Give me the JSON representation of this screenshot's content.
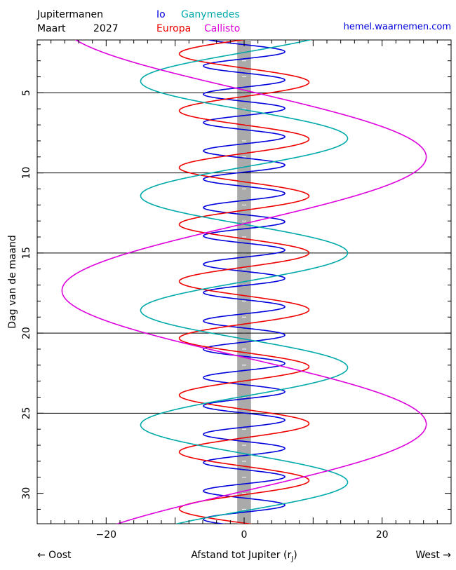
{
  "header": {
    "title": "Jupitermanen",
    "month": "Maart",
    "year": "2027",
    "site": "hemel.waarnemen.com"
  },
  "legend": [
    {
      "name": "Io",
      "color": "#0000dd"
    },
    {
      "name": "Ganymedes",
      "color": "#00aaaa"
    },
    {
      "name": "Europa",
      "color": "#ee0000"
    },
    {
      "name": "Callisto",
      "color": "#dd00dd"
    }
  ],
  "footer": {
    "east": "← Oost",
    "west": "West →",
    "xlabel": "Afstand tot Jupiter (r",
    "xlabel_sub": "J",
    "xlabel_close": ")"
  },
  "chart_data": {
    "type": "line",
    "title": "Jupitermanen",
    "xlabel": "Afstand tot Jupiter (rJ)",
    "ylabel": "Dag van de maand",
    "xlim": [
      -30,
      30
    ],
    "ylim": [
      1.7,
      31.9
    ],
    "y_inverted": true,
    "xticks": [
      -20,
      0,
      20
    ],
    "yticks": [
      5,
      10,
      15,
      20,
      25,
      30
    ],
    "grid": "horizontal lines at days 5, 10, 15, 20, 25",
    "jupiter_band_halfwidth": 1,
    "series": [
      {
        "name": "Io",
        "color": "#0000dd",
        "amplitude": 5.9,
        "period_days": 1.769,
        "peak_day": 27.2
      },
      {
        "name": "Europa",
        "color": "#ee0000",
        "amplitude": 9.4,
        "period_days": 3.551,
        "peak_day": 29.2
      },
      {
        "name": "Ganymedes",
        "color": "#00aaaa",
        "amplitude": 15.0,
        "period_days": 7.155,
        "peak_day": 15.0
      },
      {
        "name": "Callisto",
        "color": "#dd00dd",
        "amplitude": 26.4,
        "period_days": 16.689,
        "peak_day": 9.0
      }
    ]
  }
}
